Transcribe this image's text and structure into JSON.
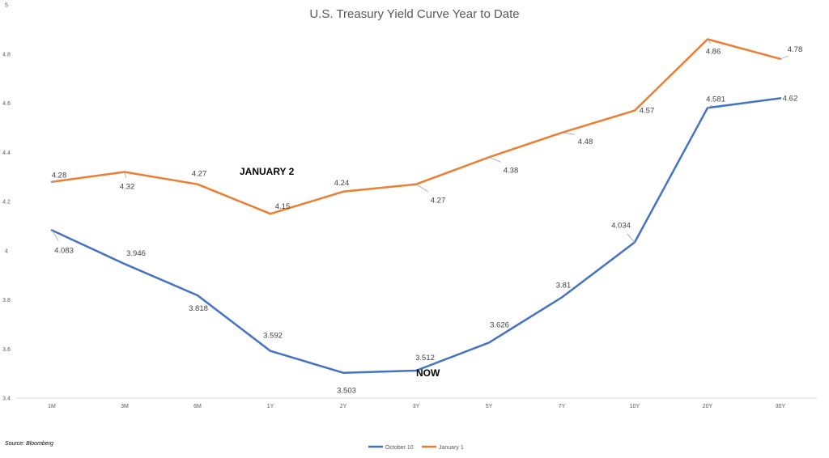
{
  "chart_data": {
    "type": "line",
    "title": "U.S. Treasury Yield Curve Year to Date",
    "xlabel": "",
    "ylabel": "",
    "categories": [
      "1M",
      "3M",
      "6M",
      "1Y",
      "2Y",
      "3Y",
      "5Y",
      "7Y",
      "10Y",
      "20Y",
      "30Y"
    ],
    "yticks": [
      "3.4",
      "3.6",
      "3.8",
      "4",
      "4.2",
      "4.4",
      "4.6",
      "4.8",
      "5"
    ],
    "ylim": [
      3.4,
      5.0
    ],
    "grid": false,
    "legend_position": "bottom",
    "series": [
      {
        "name": "October 10",
        "color": "#4472C4",
        "values": [
          4.083,
          3.946,
          3.818,
          3.592,
          3.503,
          3.512,
          3.626,
          3.81,
          4.034,
          4.581,
          4.62
        ],
        "labels": [
          "4.083",
          "3.946",
          "3.818",
          "3.592",
          "3.503",
          "3.512",
          "3.626",
          "3.81",
          "4.034",
          "4.581",
          "4.62"
        ]
      },
      {
        "name": "January 1",
        "color": "#ED7D31",
        "values": [
          4.28,
          4.32,
          4.27,
          4.15,
          4.24,
          4.27,
          4.38,
          4.48,
          4.57,
          4.86,
          4.78
        ],
        "labels": [
          "4.28",
          "4.32",
          "4.27",
          "4.15",
          "4.24",
          "4.27",
          "4.38",
          "4.48",
          "4.57",
          "4.86",
          "4.78"
        ]
      }
    ],
    "annotations": [
      "JANUARY 2",
      "NOW"
    ],
    "source": "Source: Bloomberg"
  }
}
